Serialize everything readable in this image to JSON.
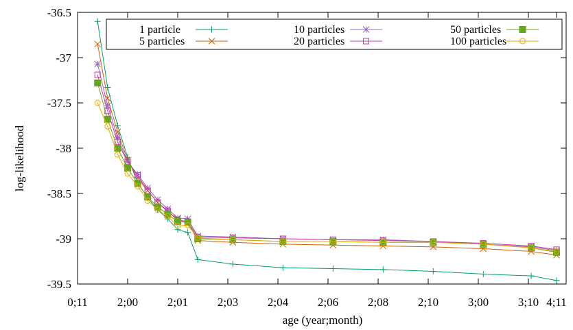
{
  "chart_data": {
    "type": "line",
    "xlabel": "age (year;month)",
    "ylabel": "log-likelihood",
    "ylim": [
      -39.5,
      -36.5
    ],
    "grid": false,
    "legend_position": "top, inside plot",
    "x_tick_labels": [
      "0;11",
      "2;00",
      "2;01",
      "2;03",
      "2;04",
      "2;06",
      "2;08",
      "2;10",
      "3;00",
      "3;10",
      "4;11"
    ],
    "y_tick_labels": [
      "-36.5",
      "-37",
      "-37.5",
      "-38",
      "-38.5",
      "-39",
      "-39.5"
    ],
    "x": [
      0.4,
      0.6,
      0.8,
      1.0,
      1.2,
      1.4,
      1.6,
      1.8,
      2.0,
      2.2,
      2.4,
      3.1,
      4.1,
      5.1,
      6.1,
      7.1,
      8.1,
      9.1,
      10.0
    ],
    "series": [
      {
        "name": "1 particle",
        "color": "#009e73",
        "marker": "plus",
        "values": [
          -36.6,
          -37.33,
          -37.75,
          -38.1,
          -38.38,
          -38.55,
          -38.68,
          -38.78,
          -38.9,
          -38.93,
          -39.23,
          -39.28,
          -39.32,
          -39.33,
          -39.34,
          -39.36,
          -39.39,
          -39.41,
          -39.46
        ]
      },
      {
        "name": "5 particles",
        "color": "#d55e00",
        "marker": "cross",
        "values": [
          -36.85,
          -37.45,
          -37.82,
          -38.13,
          -38.33,
          -38.47,
          -38.6,
          -38.7,
          -38.78,
          -38.82,
          -39.02,
          -39.04,
          -39.06,
          -39.07,
          -39.08,
          -39.09,
          -39.11,
          -39.14,
          -39.18
        ]
      },
      {
        "name": "10 particles",
        "color": "#9467bd",
        "marker": "star",
        "values": [
          -37.07,
          -37.53,
          -37.88,
          -38.15,
          -38.29,
          -38.44,
          -38.57,
          -38.67,
          -38.77,
          -38.78,
          -38.97,
          -38.98,
          -39.0,
          -39.01,
          -39.01,
          -39.03,
          -39.06,
          -39.09,
          -39.13
        ]
      },
      {
        "name": "20 particles",
        "color": "#cc33aa",
        "marker": "square-open",
        "values": [
          -37.19,
          -37.59,
          -37.93,
          -38.15,
          -38.3,
          -38.47,
          -38.6,
          -38.69,
          -38.8,
          -38.81,
          -38.98,
          -38.99,
          -39.0,
          -39.01,
          -39.02,
          -39.03,
          -39.05,
          -39.08,
          -39.12
        ]
      },
      {
        "name": "50 particles",
        "color": "#66a61e",
        "marker": "square-filled",
        "values": [
          -37.28,
          -37.68,
          -38.0,
          -38.22,
          -38.39,
          -38.54,
          -38.65,
          -38.73,
          -38.81,
          -38.82,
          -39.0,
          -39.01,
          -39.03,
          -39.03,
          -39.04,
          -39.04,
          -39.06,
          -39.1,
          -39.15
        ]
      },
      {
        "name": "100 particles",
        "color": "#e6ab02",
        "marker": "circle-open",
        "values": [
          -37.5,
          -37.76,
          -38.07,
          -38.28,
          -38.42,
          -38.58,
          -38.68,
          -38.75,
          -38.86,
          -38.85,
          -38.99,
          -39.01,
          -39.03,
          -39.03,
          -39.04,
          -39.04,
          -39.06,
          -39.1,
          -39.14
        ]
      }
    ]
  }
}
